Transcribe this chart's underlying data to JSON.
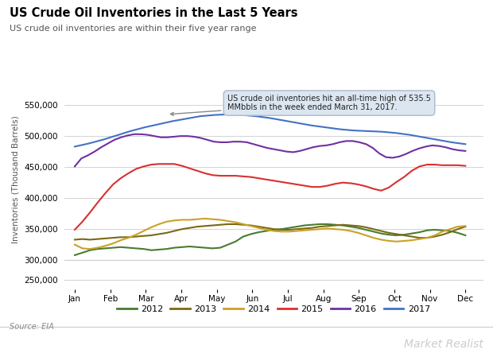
{
  "title": "US Crude Oil Inventories in the Last 5 Years",
  "subtitle": "US crude oil inventories are within their five year range",
  "ylabel": "Inventories (Thousand Barrels)",
  "source": "Source: EIA",
  "watermark": "Market Realist",
  "plot_ylim": [
    300000,
    560000
  ],
  "full_ylim": [
    250000,
    560000
  ],
  "yticks": [
    300000,
    350000,
    400000,
    450000,
    500000,
    550000
  ],
  "months": [
    "Jan",
    "Feb",
    "Mar",
    "Apr",
    "May",
    "Jun",
    "Jul",
    "Aug",
    "Sep",
    "Oct",
    "Nov",
    "Dec"
  ],
  "annotation_text": "US crude oil inventories hit an all-time high of 535.5\nMMbbls in the week ended March 31, 2017.",
  "colors": {
    "2012": "#4a7c2f",
    "2013": "#7b6914",
    "2014": "#c9a227",
    "2015": "#d93030",
    "2016": "#7030a0",
    "2017": "#4472c4"
  },
  "series": {
    "2012": [
      308,
      312,
      316,
      318,
      319,
      320,
      321,
      320,
      319,
      318,
      316,
      317,
      318,
      320,
      321,
      322,
      321,
      320,
      319,
      320,
      325,
      330,
      338,
      342,
      345,
      347,
      349,
      350,
      352,
      354,
      356,
      357,
      358,
      358,
      357,
      356,
      354,
      352,
      349,
      346,
      343,
      341,
      340,
      341,
      343,
      345,
      348,
      349,
      348,
      347,
      344,
      340
    ],
    "2013": [
      333,
      334,
      333,
      334,
      335,
      336,
      337,
      337,
      338,
      339,
      340,
      342,
      344,
      347,
      350,
      352,
      354,
      355,
      356,
      357,
      358,
      358,
      357,
      356,
      354,
      352,
      350,
      349,
      349,
      350,
      351,
      352,
      354,
      355,
      356,
      357,
      356,
      355,
      353,
      350,
      347,
      344,
      342,
      340,
      338,
      336,
      336,
      338,
      341,
      345,
      350,
      354
    ],
    "2014": [
      325,
      319,
      318,
      320,
      323,
      327,
      332,
      336,
      341,
      347,
      353,
      358,
      362,
      364,
      365,
      365,
      366,
      367,
      366,
      365,
      363,
      361,
      358,
      355,
      352,
      349,
      347,
      346,
      346,
      347,
      348,
      349,
      350,
      351,
      350,
      349,
      347,
      344,
      340,
      336,
      333,
      331,
      330,
      331,
      332,
      334,
      336,
      340,
      346,
      350,
      354,
      355
    ],
    "2015": [
      349,
      362,
      377,
      393,
      408,
      422,
      432,
      440,
      447,
      451,
      454,
      455,
      455,
      455,
      452,
      448,
      444,
      440,
      437,
      436,
      436,
      436,
      435,
      434,
      432,
      430,
      428,
      426,
      424,
      422,
      420,
      418,
      418,
      420,
      423,
      425,
      424,
      422,
      419,
      415,
      412,
      417,
      426,
      434,
      444,
      451,
      454,
      454,
      453,
      453,
      453,
      452
    ],
    "2016": [
      451,
      464,
      469,
      475,
      482,
      488,
      494,
      498,
      501,
      503,
      503,
      502,
      500,
      498,
      498,
      499,
      500,
      500,
      499,
      497,
      494,
      491,
      490,
      490,
      491,
      491,
      490,
      487,
      484,
      481,
      479,
      477,
      475,
      474,
      476,
      479,
      482,
      484,
      485,
      487,
      490,
      492,
      492,
      490,
      487,
      481,
      472,
      466,
      465,
      467,
      471,
      476,
      480,
      483,
      485,
      484,
      482,
      479,
      477,
      476
    ],
    "2017": [
      483,
      488,
      494,
      501,
      508,
      514,
      519,
      524,
      528,
      532,
      534,
      535,
      534,
      532,
      529,
      525,
      521,
      517,
      514,
      511,
      509,
      508,
      507,
      505,
      502,
      498,
      494,
      490,
      487
    ]
  }
}
